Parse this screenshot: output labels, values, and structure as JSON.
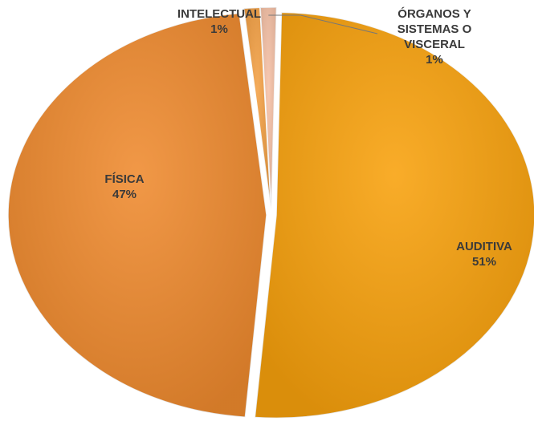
{
  "chart_data": {
    "type": "pie",
    "categories": [
      "AUDITIVA",
      "FÍSICA",
      "INTELECTUAL",
      "ÓRGANOS Y SISTEMAS O VISCERAL"
    ],
    "values": [
      51,
      47,
      1,
      1
    ],
    "value_labels": [
      "51%",
      "47%",
      "1%",
      "1%"
    ],
    "colors": [
      "#f8a10c",
      "#ef8a2e",
      "#f3a044",
      "#f6c1a6"
    ]
  }
}
